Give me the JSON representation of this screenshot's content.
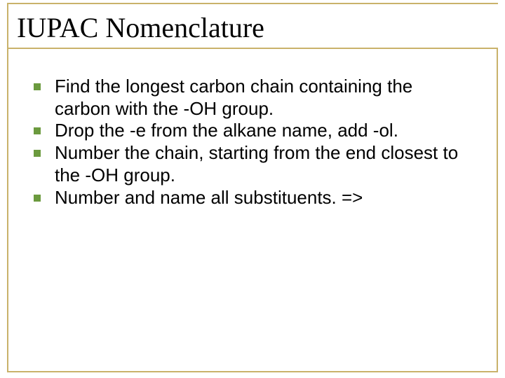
{
  "slide": {
    "title": "IUPAC Nomenclature",
    "title_fontsize": 40,
    "title_color": "#000000",
    "body_fontsize": 26,
    "body_color": "#000000",
    "bullet_color": "#6b9a3e",
    "bullet_size": 10,
    "frame_color": "#c9b26a",
    "background_color": "#ffffff",
    "bullets": [
      "Find the longest carbon chain containing the carbon with the -OH group.",
      "Drop the -e from the alkane name, add -ol.",
      "Number the chain, starting from the end closest to the -OH group.",
      "Number and name all substituents. =>"
    ]
  }
}
